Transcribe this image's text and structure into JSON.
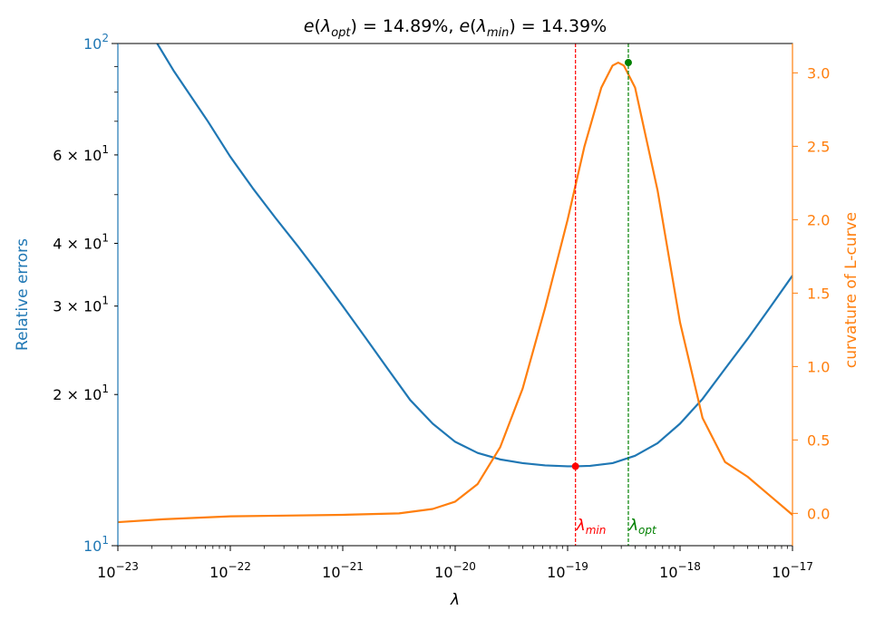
{
  "chart_data": {
    "type": "line",
    "title_parts": [
      "e(",
      "λ",
      "opt",
      ") = 14.89%, e(",
      "λ",
      "min",
      ") = 14.39%"
    ],
    "xlabel": "λ",
    "ylabel_left": "Relative errors",
    "ylabel_right": "curvature of L-curve",
    "x_scale": "log",
    "x_log10_range": [
      -23,
      -17
    ],
    "x_ticks": [
      {
        "exp": -23,
        "base": "10",
        "sup": "−23"
      },
      {
        "exp": -22,
        "base": "10",
        "sup": "−22"
      },
      {
        "exp": -21,
        "base": "10",
        "sup": "−21"
      },
      {
        "exp": -20,
        "base": "10",
        "sup": "−20"
      },
      {
        "exp": -19,
        "base": "10",
        "sup": "−19"
      },
      {
        "exp": -18,
        "base": "10",
        "sup": "−18"
      },
      {
        "exp": -17,
        "base": "10",
        "sup": "−17"
      }
    ],
    "y_left_scale": "log",
    "y_left_range": [
      10,
      100
    ],
    "y_left_ticks": [
      {
        "value": 10,
        "label": "10",
        "sup": "1",
        "style": "power",
        "color": "#1f77b4"
      },
      {
        "value": 20,
        "label": "2 × 10",
        "sup": "1",
        "style": "mult",
        "color": "#000000"
      },
      {
        "value": 30,
        "label": "3 × 10",
        "sup": "1",
        "style": "mult",
        "color": "#000000"
      },
      {
        "value": 40,
        "label": "4 × 10",
        "sup": "1",
        "style": "mult",
        "color": "#000000"
      },
      {
        "value": 60,
        "label": "6 × 10",
        "sup": "1",
        "style": "mult",
        "color": "#000000"
      },
      {
        "value": 100,
        "label": "10",
        "sup": "2",
        "style": "power",
        "color": "#1f77b4"
      }
    ],
    "y_left_minor": [
      50,
      70,
      80,
      90
    ],
    "y_right_range": [
      -0.22,
      3.2
    ],
    "y_right_ticks": [
      "0.0",
      "0.5",
      "1.0",
      "1.5",
      "2.0",
      "2.5",
      "3.0"
    ],
    "series": [
      {
        "axis": "left",
        "color": "#1f77b4",
        "points": [
          [
            -22.65,
            100
          ],
          [
            -22.5,
            88
          ],
          [
            -22.2,
            70
          ],
          [
            -22.0,
            59.5
          ],
          [
            -21.8,
            51.5
          ],
          [
            -21.6,
            45
          ],
          [
            -21.4,
            39.5
          ],
          [
            -21.2,
            34.5
          ],
          [
            -21.0,
            30
          ],
          [
            -20.8,
            26
          ],
          [
            -20.6,
            22.5
          ],
          [
            -20.4,
            19.5
          ],
          [
            -20.2,
            17.5
          ],
          [
            -20.0,
            16.1
          ],
          [
            -19.8,
            15.3
          ],
          [
            -19.6,
            14.85
          ],
          [
            -19.4,
            14.6
          ],
          [
            -19.2,
            14.45
          ],
          [
            -19.0,
            14.39
          ],
          [
            -18.93,
            14.39
          ],
          [
            -18.8,
            14.42
          ],
          [
            -18.6,
            14.6
          ],
          [
            -18.4,
            15.1
          ],
          [
            -18.2,
            16.0
          ],
          [
            -18.0,
            17.5
          ],
          [
            -17.8,
            19.6
          ],
          [
            -17.6,
            22.5
          ],
          [
            -17.4,
            25.8
          ],
          [
            -17.2,
            29.8
          ],
          [
            -17.0,
            34.5
          ]
        ]
      },
      {
        "axis": "right",
        "color": "#ff7f0e",
        "points": [
          [
            -23.0,
            -0.06
          ],
          [
            -22.6,
            -0.04
          ],
          [
            -22.0,
            -0.02
          ],
          [
            -21.5,
            -0.015
          ],
          [
            -21.0,
            -0.01
          ],
          [
            -20.5,
            0.0
          ],
          [
            -20.2,
            0.03
          ],
          [
            -20.0,
            0.08
          ],
          [
            -19.8,
            0.2
          ],
          [
            -19.6,
            0.45
          ],
          [
            -19.4,
            0.85
          ],
          [
            -19.2,
            1.4
          ],
          [
            -19.0,
            2.0
          ],
          [
            -18.85,
            2.5
          ],
          [
            -18.7,
            2.9
          ],
          [
            -18.6,
            3.05
          ],
          [
            -18.55,
            3.07
          ],
          [
            -18.5,
            3.05
          ],
          [
            -18.4,
            2.9
          ],
          [
            -18.2,
            2.2
          ],
          [
            -18.0,
            1.3
          ],
          [
            -17.8,
            0.65
          ],
          [
            -17.6,
            0.35
          ],
          [
            -17.4,
            0.25
          ],
          [
            -17.2,
            0.12
          ],
          [
            -17.0,
            -0.01
          ]
        ]
      }
    ],
    "vlines": [
      {
        "log10x": -18.93,
        "color": "#ff0000",
        "label": "λ",
        "sub": "min"
      },
      {
        "log10x": -18.46,
        "color": "#008000",
        "label": "λ",
        "sub": "opt"
      }
    ],
    "markers": [
      {
        "log10x": -18.93,
        "y": 14.39,
        "axis": "left",
        "color": "#ff0000"
      },
      {
        "log10x": -18.46,
        "y": 3.07,
        "axis": "right",
        "color": "#008000"
      }
    ],
    "colors": {
      "left_axis": "#1f77b4",
      "right_axis": "#ff7f0e"
    }
  }
}
